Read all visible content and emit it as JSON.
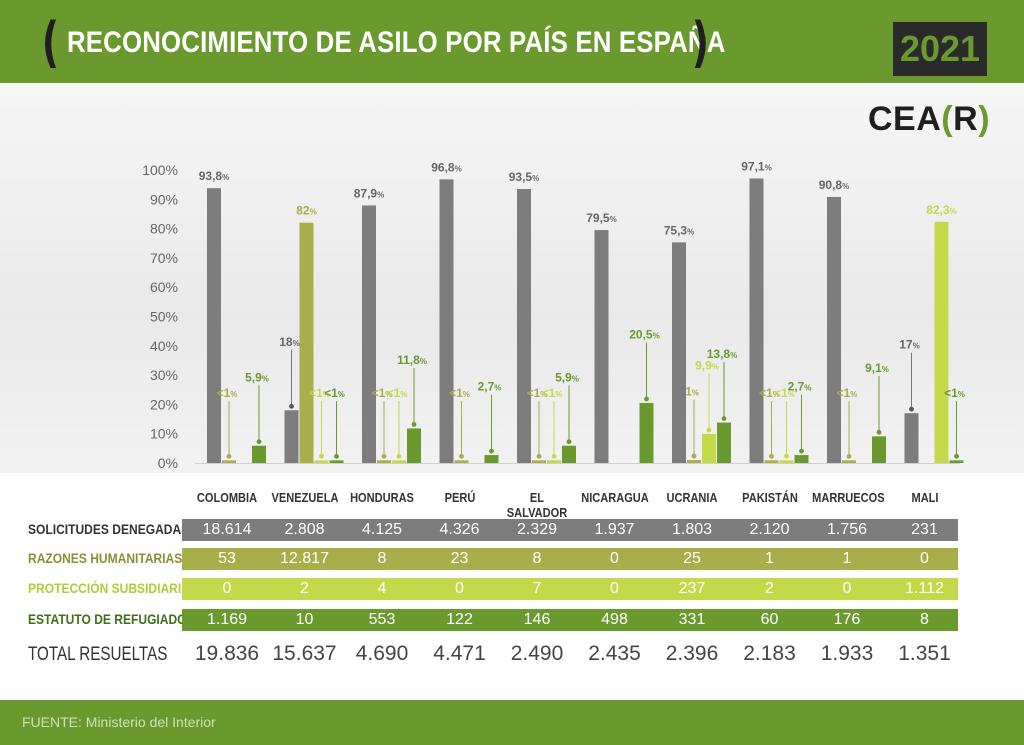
{
  "header": {
    "title": "RECONOCIMIENTO DE ASILO POR PAÍS EN ESPAÑA",
    "year": "2021",
    "logo_main": "CEA",
    "logo_bracket_open": "(",
    "logo_letter": "R",
    "logo_bracket_close": ")"
  },
  "colors": {
    "denegadas": "#7d7d7d",
    "humanitarias": "#a8ae4a",
    "subsidiaria": "#c4d94a",
    "refugiado": "#6a9a2e",
    "header": "#6a9a2e"
  },
  "chart_data": {
    "type": "bar",
    "ylim": [
      0,
      100
    ],
    "yticks": [
      "0%",
      "10%",
      "20%",
      "30%",
      "40%",
      "50%",
      "60%",
      "70%",
      "80%",
      "90%",
      "100%"
    ],
    "categories": [
      "COLOMBIA",
      "VENEZUELA",
      "HONDURAS",
      "PERÚ",
      "EL SALVADOR",
      "NICARAGUA",
      "UCRANIA",
      "PAKISTÁN",
      "MARRUECOS",
      "MALI"
    ],
    "series": [
      {
        "key": "denegadas",
        "values": [
          93.8,
          18,
          87.9,
          96.8,
          93.5,
          79.5,
          75.3,
          97.1,
          90.8,
          17
        ],
        "labels": [
          "93,8",
          "18",
          "87,9",
          "96,8",
          "93,5",
          "79,5",
          "75,3",
          "97,1",
          "90,8",
          "17"
        ]
      },
      {
        "key": "humanitarias",
        "values": [
          0.5,
          82,
          0.5,
          0.5,
          0.5,
          0,
          1,
          0.5,
          0.5,
          0
        ],
        "labels": [
          "<1",
          "82",
          "<1",
          "<1",
          "<1",
          "",
          "1",
          "<1",
          "<1",
          ""
        ]
      },
      {
        "key": "subsidiaria",
        "values": [
          0,
          0.5,
          0.5,
          0,
          0.5,
          0,
          9.9,
          0.5,
          0,
          82.3
        ],
        "labels": [
          "",
          "<1",
          "<1",
          "",
          "<1",
          "",
          "9,9",
          "<1",
          "",
          "82,3"
        ]
      },
      {
        "key": "refugiado",
        "values": [
          5.9,
          0.5,
          11.8,
          2.7,
          5.9,
          20.5,
          13.8,
          2.7,
          9.1,
          0.5
        ],
        "labels": [
          "5,9",
          "<1",
          "11,8",
          "2,7",
          "5,9",
          "20,5",
          "13,8",
          "2,7",
          "9,1",
          "<1"
        ]
      }
    ]
  },
  "table": {
    "rows": [
      {
        "label": "SOLICITUDES DENEGADAS",
        "key": "denegadas",
        "values": [
          "18.614",
          "2.808",
          "4.125",
          "4.326",
          "2.329",
          "1.937",
          "1.803",
          "2.120",
          "1.756",
          "231"
        ]
      },
      {
        "label": "RAZONES HUMANITARIAS",
        "key": "humanitarias",
        "values": [
          "53",
          "12.817",
          "8",
          "23",
          "8",
          "0",
          "25",
          "1",
          "1",
          "0"
        ]
      },
      {
        "label": "PROTECCIÓN SUBSIDIARIA",
        "key": "subsidiaria",
        "values": [
          "0",
          "2",
          "4",
          "0",
          "7",
          "0",
          "237",
          "2",
          "0",
          "1.112"
        ]
      },
      {
        "label": "ESTATUTO DE REFUGIADO",
        "key": "refugiado",
        "values": [
          "1.169",
          "10",
          "553",
          "122",
          "146",
          "498",
          "331",
          "60",
          "176",
          "8"
        ]
      }
    ],
    "total": {
      "label": "TOTAL RESUELTAS",
      "values": [
        "19.836",
        "15.637",
        "4.690",
        "4.471",
        "2.490",
        "2.435",
        "2.396",
        "2.183",
        "1.933",
        "1.351"
      ]
    }
  },
  "footer": {
    "source": "FUENTE: Ministerio del Interior"
  }
}
